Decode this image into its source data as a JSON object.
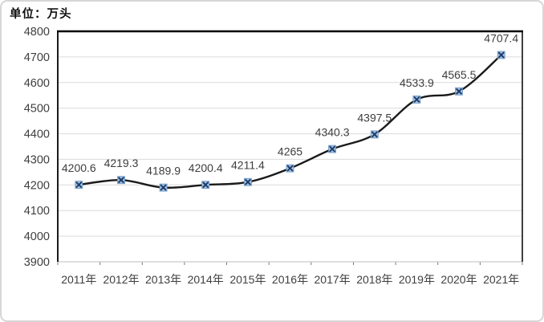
{
  "unit_label": "单位：万头",
  "chart_data": {
    "type": "line",
    "title": "",
    "xlabel": "",
    "ylabel": "单位：万头",
    "categories": [
      "2011年",
      "2012年",
      "2013年",
      "2014年",
      "2015年",
      "2016年",
      "2017年",
      "2018年",
      "2019年",
      "2020年",
      "2021年"
    ],
    "values": [
      4200.6,
      4219.3,
      4189.9,
      4200.4,
      4211.4,
      4265,
      4340.3,
      4397.5,
      4533.9,
      4565.5,
      4707.4
    ],
    "point_labels": [
      "4200.6",
      "4219.3",
      "4189.9",
      "4200.4",
      "4211.4",
      "4265",
      "4340.3",
      "4397.5",
      "4533.9",
      "4565.5",
      "4707.4"
    ],
    "ylim": [
      3900,
      4800
    ],
    "ytick_step": 100,
    "grid": true,
    "legend_position": "none",
    "line_smoothed": true,
    "marker_style": "x-in-square",
    "colors": {
      "line": "#1a1a1a",
      "marker_fill": "#9dc3e6",
      "marker_edge": "#6b93bf",
      "marker_x": "#1f3864",
      "grid": "#d9d9d9",
      "axis": "#000000",
      "bottom_axis": "#c9c9c9",
      "tick_mark": "#7a7a7a",
      "tick_text": "#3f3f3f",
      "data_label": "#3d3d3d"
    }
  }
}
